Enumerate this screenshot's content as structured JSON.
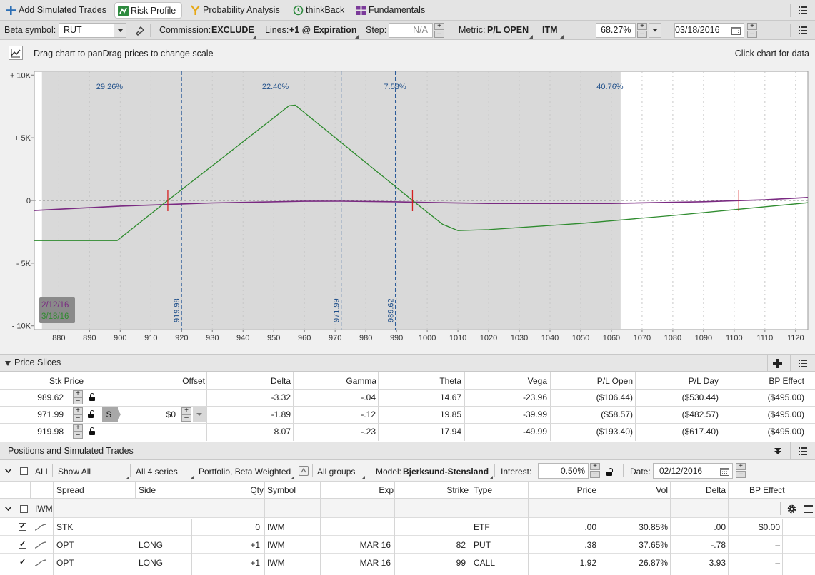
{
  "tabs": [
    {
      "label": "Add Simulated Trades",
      "icon": "plus-icon",
      "active": false
    },
    {
      "label": "Risk Profile",
      "icon": "risk-profile-icon",
      "active": true
    },
    {
      "label": "Probability Analysis",
      "icon": "probability-icon",
      "active": false
    },
    {
      "label": "thinkBack",
      "icon": "thinkback-icon",
      "active": false
    },
    {
      "label": "Fundamentals",
      "icon": "fundamentals-icon",
      "active": false
    }
  ],
  "toolbar": {
    "beta_symbol_label": "Beta symbol:",
    "beta_symbol_value": "RUT",
    "commission_label": "Commission:",
    "commission_value": "EXCLUDE",
    "lines_label": "Lines:",
    "lines_value": "+1 @ Expiration",
    "step_label": "Step:",
    "step_value": "N/A",
    "metric_label": "Metric:",
    "metric_value": "P/L OPEN",
    "itm_label": "ITM",
    "itm_percent": "68.27%",
    "date_value": "03/18/2016"
  },
  "dragbar": {
    "left_text": "Drag chart to panDrag prices to change scale",
    "right_text": "Click chart for data"
  },
  "chart_data": {
    "type": "line",
    "x_ticks": [
      880,
      890,
      900,
      910,
      920,
      930,
      940,
      950,
      960,
      970,
      980,
      990,
      1000,
      1010,
      1020,
      1030,
      1040,
      1050,
      1060,
      1070,
      1080,
      1090,
      1100,
      1110,
      1120
    ],
    "y_ticks": [
      "+ 10K",
      "+ 5K",
      "0",
      "- 5K",
      "- 10K"
    ],
    "y_tick_values": [
      10000,
      5000,
      0,
      -5000,
      -10000
    ],
    "xlim": [
      872,
      1124
    ],
    "ylim": [
      -10000,
      10000
    ],
    "shaded_range": [
      874.5,
      1063
    ],
    "zone_percents": [
      {
        "label": "29.26%",
        "x": 897
      },
      {
        "label": "22.40%",
        "x": 951
      },
      {
        "label": "7.58%",
        "x": 990
      },
      {
        "label": "40.76%",
        "x": 1060
      }
    ],
    "vertical_lines": [
      {
        "label": "919.98",
        "x": 919.98
      },
      {
        "label": "971.99",
        "x": 971.99
      },
      {
        "label": "989.62",
        "x": 989.62
      }
    ],
    "breakeven_markers": [
      915.5,
      995.2,
      1101.5
    ],
    "series": [
      {
        "name": "2/12/16",
        "color": "#7a2a82",
        "points": [
          [
            872,
            -800
          ],
          [
            900,
            -450
          ],
          [
            930,
            -200
          ],
          [
            960,
            -60
          ],
          [
            972,
            -58
          ],
          [
            990,
            -106
          ],
          [
            1000,
            -160
          ],
          [
            1020,
            -240
          ],
          [
            1060,
            -240
          ],
          [
            1090,
            -100
          ],
          [
            1110,
            50
          ],
          [
            1124,
            240
          ]
        ]
      },
      {
        "name": "3/18/16",
        "color": "#2e8b2e",
        "points": [
          [
            872,
            -3200
          ],
          [
            899,
            -3200
          ],
          [
            915.5,
            0
          ],
          [
            955,
            7550
          ],
          [
            957,
            7600
          ],
          [
            995.2,
            0
          ],
          [
            1005,
            -1900
          ],
          [
            1010,
            -2400
          ],
          [
            1020,
            -2330
          ],
          [
            1050,
            -1830
          ],
          [
            1080,
            -1200
          ],
          [
            1101.5,
            -700
          ],
          [
            1124,
            -180
          ]
        ]
      }
    ],
    "legend": [
      "2/12/16",
      "3/18/16"
    ],
    "legend_position": "bottom-left"
  },
  "price_slices": {
    "title": "Price Slices",
    "headers": [
      "Stk Price",
      "Offset",
      "Delta",
      "Gamma",
      "Theta",
      "Vega",
      "P/L Open",
      "P/L Day",
      "BP Effect"
    ],
    "rows": [
      {
        "stk_price": "989.62",
        "offset": "",
        "delta": "-3.32",
        "gamma": "-.04",
        "theta": "14.67",
        "vega": "-23.96",
        "pl_open": "($106.44)",
        "pl_day": "($530.44)",
        "bp_effect": "($495.00)"
      },
      {
        "stk_price": "971.99",
        "offset": "$0",
        "offset_symbol": "$",
        "delta": "-1.89",
        "gamma": "-.12",
        "theta": "19.85",
        "vega": "-39.99",
        "pl_open": "($58.57)",
        "pl_day": "($482.57)",
        "bp_effect": "($495.00)"
      },
      {
        "stk_price": "919.98",
        "offset": "",
        "delta": "8.07",
        "gamma": "-.23",
        "theta": "17.94",
        "vega": "-49.99",
        "pl_open": "($193.40)",
        "pl_day": "($617.40)",
        "bp_effect": "($495.00)"
      }
    ]
  },
  "positions": {
    "title": "Positions and Simulated Trades",
    "filter": {
      "all": "ALL",
      "show_all": "Show All",
      "series": "All 4 series",
      "portfolio": "Portfolio, Beta Weighted",
      "groups": "All groups",
      "model_label": "Model:",
      "model_value": "Bjerksund-Stensland",
      "interest_label": "Interest:",
      "interest_value": "0.50%",
      "date_label": "Date:",
      "date_value": "02/12/2016"
    },
    "headers": [
      "Spread",
      "Side",
      "Qty",
      "Symbol",
      "Exp",
      "Strike",
      "Type",
      "Price",
      "Vol",
      "Delta",
      "BP Effect"
    ],
    "group_name": "IWM",
    "rows": [
      {
        "spread": "STK",
        "side": "",
        "qty": "0",
        "symbol": "IWM",
        "exp": "",
        "strike": "",
        "type": "ETF",
        "price": ".00",
        "vol": "30.85%",
        "delta": ".00",
        "bp_effect": "$0.00"
      },
      {
        "spread": "OPT",
        "side": "LONG",
        "qty": "+1",
        "symbol": "IWM",
        "exp": "MAR 16",
        "strike": "82",
        "type": "PUT",
        "price": ".38",
        "vol": "37.65%",
        "delta": "-.78",
        "bp_effect": "–"
      },
      {
        "spread": "OPT",
        "side": "LONG",
        "qty": "+1",
        "symbol": "IWM",
        "exp": "MAR 16",
        "strike": "99",
        "type": "CALL",
        "price": "1.92",
        "vol": "26.87%",
        "delta": "3.93",
        "bp_effect": "–"
      }
    ]
  }
}
